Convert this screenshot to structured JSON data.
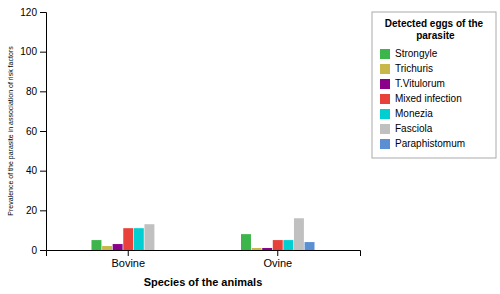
{
  "chart_data": {
    "type": "bar",
    "categories": [
      "Bovine",
      "Ovine"
    ],
    "series": [
      {
        "name": "Strongyle",
        "color": "#3cb54a",
        "values": [
          5,
          8
        ]
      },
      {
        "name": "Trichuris",
        "color": "#c8b84a",
        "values": [
          2,
          1
        ]
      },
      {
        "name": "T.Vitulorum",
        "color": "#8B008B",
        "values": [
          3,
          1
        ]
      },
      {
        "name": "Mixed infection",
        "color": "#e8403a",
        "values": [
          11,
          5
        ]
      },
      {
        "name": "Monezia",
        "color": "#00CED1",
        "values": [
          11,
          5
        ]
      },
      {
        "name": "Fasciola",
        "color": "#C0C0C0",
        "values": [
          13,
          16
        ]
      },
      {
        "name": "Paraphistomum",
        "color": "#5B8FD4",
        "values": [
          0,
          4
        ]
      }
    ],
    "xlabel": "Species of the animals",
    "ylabel": "Prevalence of the parasite in association of risk factors",
    "legend_title": "Detected eggs of the\n     parasite",
    "ylim": [
      0,
      120
    ],
    "yticks": [
      0,
      20,
      40,
      60,
      80,
      100,
      120
    ],
    "grid": false,
    "legend": "right"
  }
}
